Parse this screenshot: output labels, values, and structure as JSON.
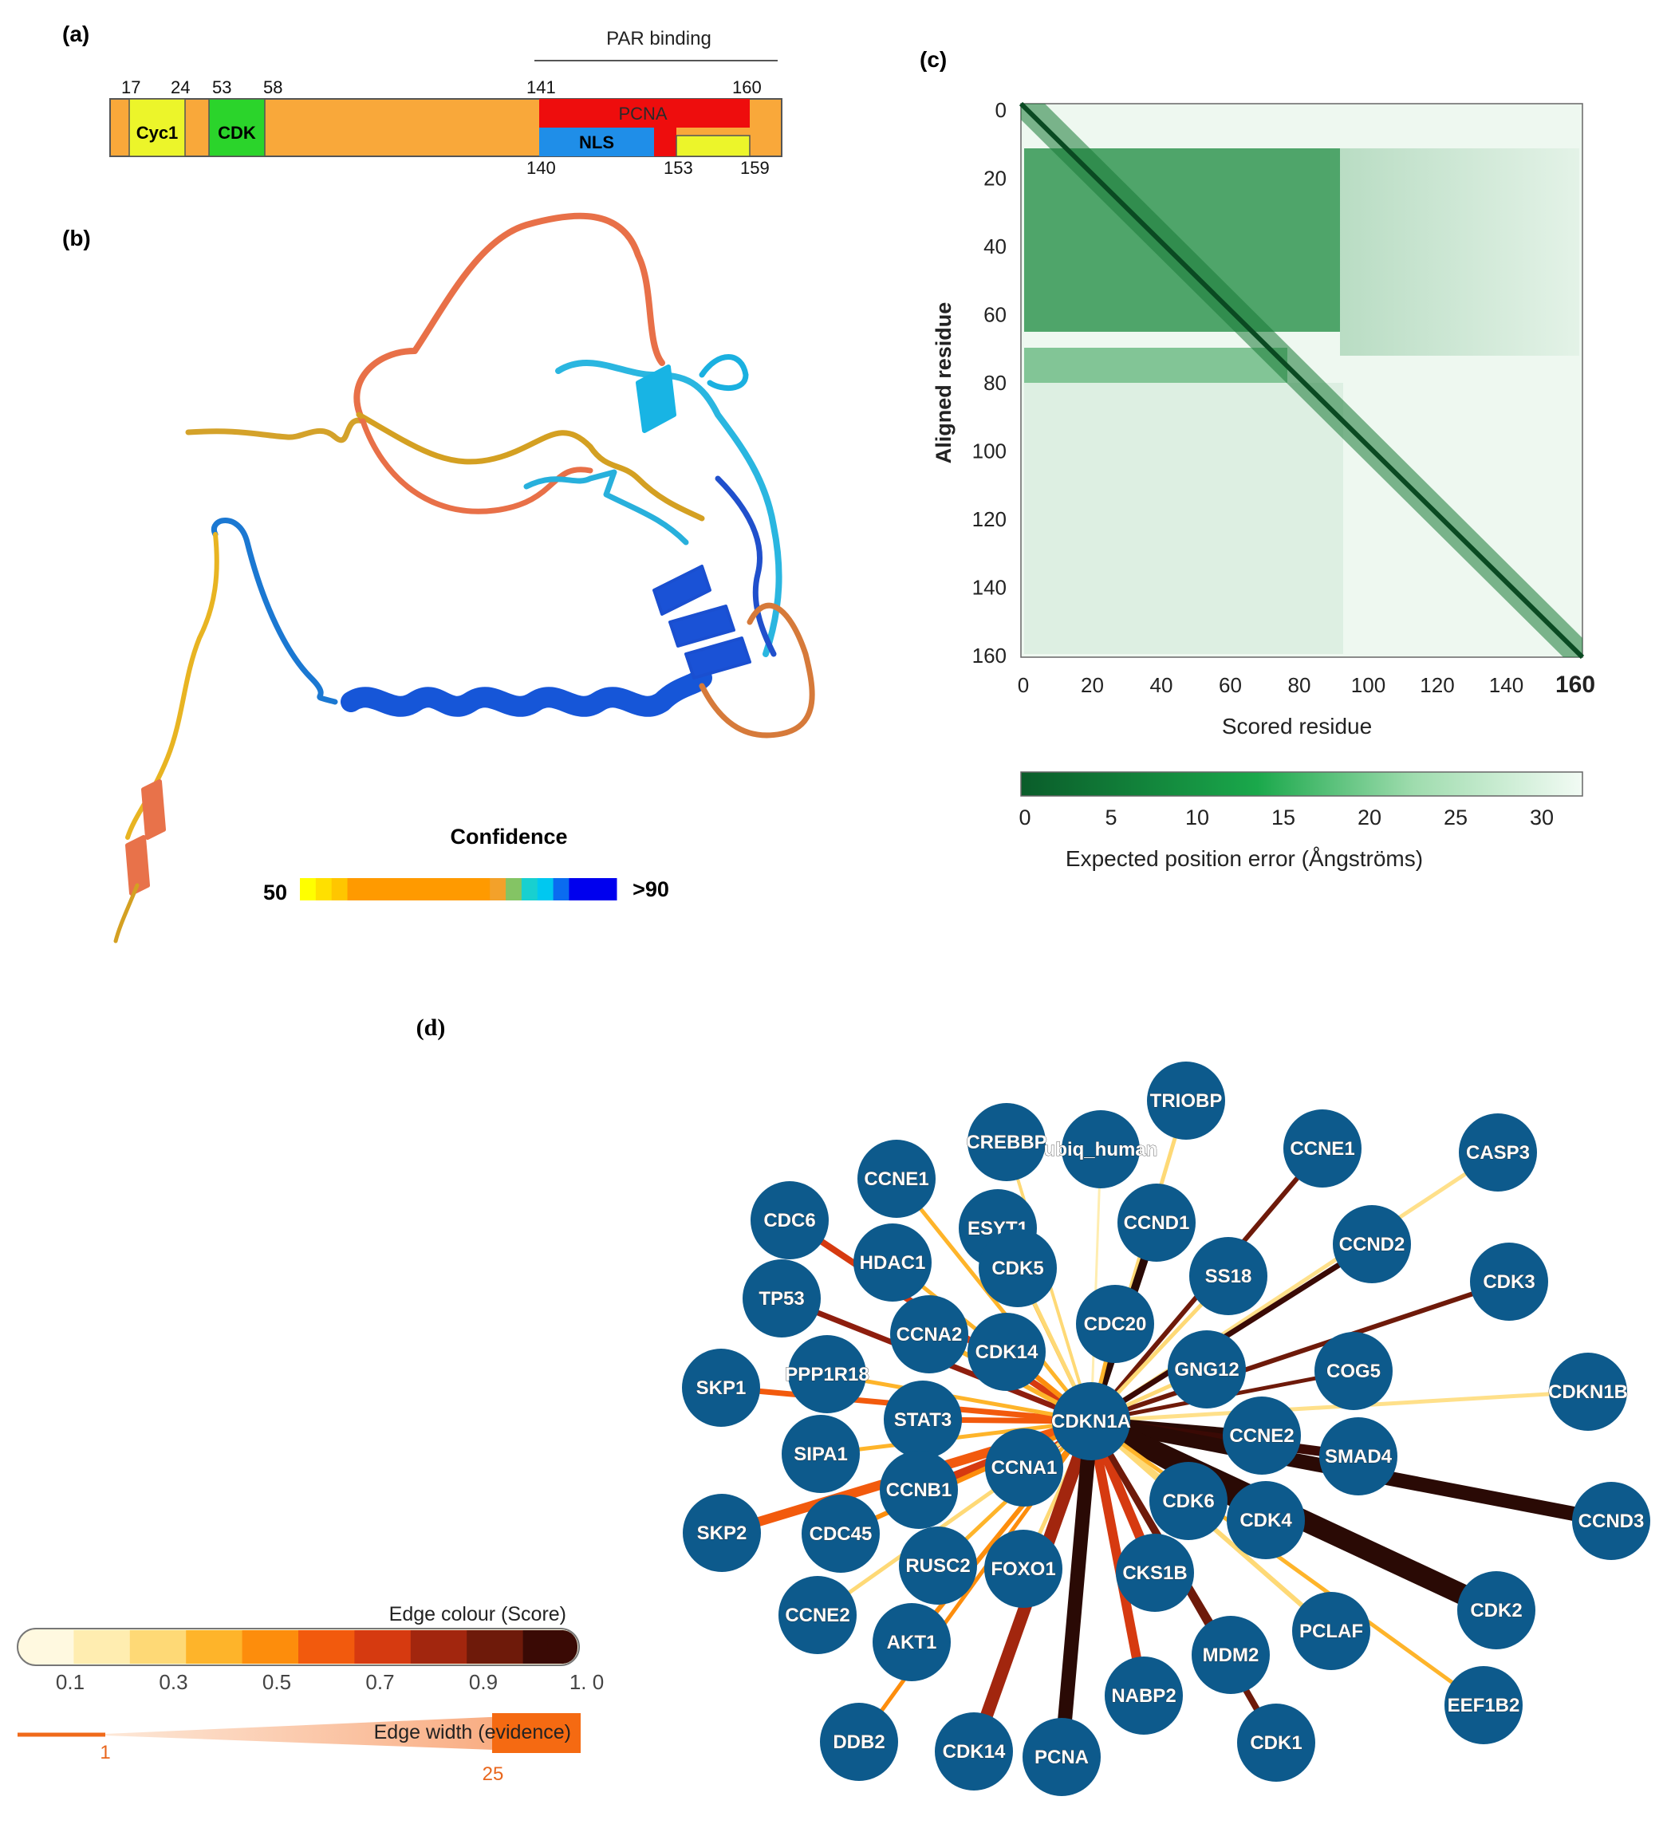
{
  "panel_a": {
    "label": "(a)",
    "par_label": "PAR binding",
    "top_numbers": [
      "17",
      "24",
      "53",
      "58",
      "141",
      "160"
    ],
    "bottom_numbers": [
      "140",
      "153",
      "159"
    ],
    "segments": [
      {
        "name": "Cyc1",
        "color": "#ecf52a"
      },
      {
        "name": "CDK",
        "color": "#2bd42b"
      },
      {
        "name": "PCNA",
        "color": "#ee0d0d"
      },
      {
        "name": "NLS",
        "color": "#1f8ee8"
      },
      {
        "name": "",
        "color": "#ecf52a"
      }
    ],
    "bar_color": "#f9a83a"
  },
  "panel_b": {
    "label": "(b)",
    "legend_title": "Confidence",
    "legend_min": "50",
    "legend_max": ">90",
    "legend_colors": [
      "#ffff00",
      "#ffe000",
      "#ffc600",
      "#ff9a00",
      "#ff9a00",
      "#f3a12a",
      "#84c464",
      "#18d0d0",
      "#00c8f0",
      "#0a6cf0",
      "#0000ee"
    ]
  },
  "panel_c": {
    "label": "(c)",
    "xlabel": "Scored residue",
    "ylabel": "Aligned residue",
    "colorbar_label": "Expected position error (Ångströms)",
    "colorbar_ticks": [
      "0",
      "5",
      "10",
      "15",
      "20",
      "25",
      "30"
    ],
    "colorbar_colors": [
      "#0a5c2a",
      "#1aa84b",
      "#9fdcae",
      "#f2fbf4"
    ]
  },
  "panel_d": {
    "label": "(d)",
    "center": "CDKN1A",
    "nodes": [
      "CREBBP",
      "ubiq_human",
      "TRIOBP",
      "CCNE1",
      "CASP3",
      "CCNE1",
      "CDC6",
      "ESYT1",
      "CCND1",
      "CCND2",
      "HDAC1",
      "CDK5",
      "SS18",
      "TP53",
      "CDK3",
      "CCNA2",
      "CDC20",
      "CDK14",
      "GNG12",
      "COG5",
      "SKP1",
      "PPP1R18",
      "CDKN1B",
      "STAT3",
      "CCNE2",
      "SIPA1",
      "SMAD4",
      "CCNA1",
      "CCNB1",
      "CCND3",
      "CDK6",
      "CDK4",
      "SKP2",
      "CDC45",
      "RUSC2",
      "FOXO1",
      "CKS1B",
      "CDK2",
      "CCNE2",
      "PCLAF",
      "AKT1",
      "MDM2",
      "NABP2",
      "EEF1B2",
      "DDB2",
      "CDK14",
      "PCNA",
      "CDK1"
    ],
    "edge_colour_title": "Edge colour (Score)",
    "edge_colour_ticks": [
      "0.1",
      "0.3",
      "0.5",
      "0.7",
      "0.9",
      "1. 0"
    ],
    "edge_colour_stops": [
      "#fff9e0",
      "#ffedb0",
      "#fed976",
      "#feb42a",
      "#fd8d0c",
      "#f25a0d",
      "#d63a10",
      "#a2260e",
      "#6e1a0a",
      "#3a0a05"
    ],
    "edge_width_title": "Edge width (evidence)",
    "edge_width_min": "1",
    "edge_width_max": "25",
    "node_color": "#0d5a8c"
  }
}
